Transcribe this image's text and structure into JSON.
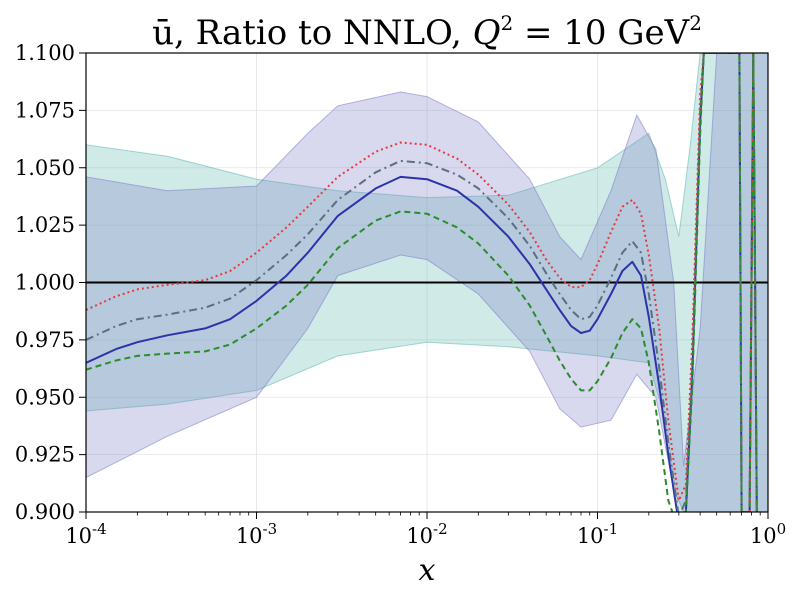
{
  "chart_data": {
    "type": "line",
    "title": "ū, Ratio to NNLO, Q² = 10 GeV²",
    "title_parts": {
      "main": "ū, Ratio to NNLO, ",
      "q": "Q",
      "q_sup": "2",
      "eq": " = 10 GeV",
      "unit_sup": "2"
    },
    "xlabel": "x",
    "ylabel": "",
    "xscale": "log",
    "xlim": [
      0.0001,
      1
    ],
    "ylim": [
      0.9,
      1.1
    ],
    "grid": true,
    "x_ticks": [
      {
        "value": 0.0001,
        "base": "10",
        "exp": "-4"
      },
      {
        "value": 0.001,
        "base": "10",
        "exp": "-3"
      },
      {
        "value": 0.01,
        "base": "10",
        "exp": "-2"
      },
      {
        "value": 0.1,
        "base": "10",
        "exp": "-1"
      },
      {
        "value": 1,
        "base": "10",
        "exp": "0"
      }
    ],
    "y_ticks": [
      0.9,
      0.925,
      0.95,
      0.975,
      1.0,
      1.025,
      1.05,
      1.075,
      1.1
    ],
    "y_tick_labels": [
      "0.900",
      "0.925",
      "0.950",
      "0.975",
      "1.000",
      "1.025",
      "1.050",
      "1.075",
      "1.100"
    ],
    "reference_line": {
      "y": 1.0,
      "color": "#000000"
    },
    "bands": [
      {
        "name": "band-teal",
        "color": "#5fb8b0",
        "x": [
          0.0001,
          0.0003,
          0.001,
          0.003,
          0.01,
          0.03,
          0.1,
          0.2,
          0.25,
          0.3,
          0.35,
          0.4,
          0.5,
          0.7,
          1
        ],
        "upper": [
          1.06,
          1.055,
          1.045,
          1.04,
          1.037,
          1.038,
          1.05,
          1.065,
          1.045,
          1.02,
          1.06,
          1.1,
          1.1,
          1.1,
          1.1
        ],
        "lower": [
          0.944,
          0.947,
          0.953,
          0.968,
          0.974,
          0.972,
          0.968,
          0.965,
          0.94,
          0.9,
          0.9,
          0.9,
          0.9,
          0.9,
          0.9
        ]
      },
      {
        "name": "band-blue",
        "color": "#7e7ec8",
        "x": [
          0.0001,
          0.0003,
          0.001,
          0.002,
          0.003,
          0.007,
          0.01,
          0.02,
          0.04,
          0.06,
          0.08,
          0.12,
          0.17,
          0.22,
          0.28,
          0.32,
          0.4,
          0.5,
          0.6,
          0.7,
          0.8,
          0.9,
          1
        ],
        "upper": [
          1.046,
          1.04,
          1.042,
          1.065,
          1.077,
          1.083,
          1.081,
          1.07,
          1.045,
          1.02,
          1.01,
          1.04,
          1.073,
          1.058,
          1.0,
          0.92,
          0.98,
          1.1,
          1.1,
          1.1,
          1.1,
          1.1,
          1.1
        ],
        "lower": [
          0.915,
          0.933,
          0.95,
          0.98,
          1.003,
          1.012,
          1.01,
          0.995,
          0.97,
          0.945,
          0.937,
          0.94,
          0.96,
          0.95,
          0.91,
          0.9,
          0.9,
          0.9,
          0.9,
          0.9,
          0.9,
          0.9,
          0.9
        ]
      }
    ],
    "series": [
      {
        "name": "solid-blue",
        "style": "solid",
        "color": "#2b33a8",
        "x": [
          0.0001,
          0.00015,
          0.0002,
          0.0003,
          0.0005,
          0.0007,
          0.001,
          0.0015,
          0.002,
          0.003,
          0.005,
          0.007,
          0.01,
          0.015,
          0.02,
          0.03,
          0.04,
          0.05,
          0.06,
          0.07,
          0.08,
          0.09,
          0.1,
          0.12,
          0.14,
          0.16,
          0.18,
          0.2,
          0.23,
          0.26,
          0.3,
          0.33,
          0.36,
          0.4,
          0.42,
          0.45,
          0.5,
          0.55,
          0.6,
          0.65,
          0.68,
          0.7,
          0.72,
          0.75,
          0.78,
          0.8,
          0.82,
          0.84,
          0.86,
          0.88
        ],
        "values": [
          0.965,
          0.971,
          0.974,
          0.977,
          0.98,
          0.984,
          0.992,
          1.003,
          1.013,
          1.029,
          1.041,
          1.046,
          1.045,
          1.04,
          1.033,
          1.02,
          1.008,
          0.997,
          0.988,
          0.981,
          0.978,
          0.979,
          0.984,
          0.995,
          1.005,
          1.009,
          1.003,
          0.985,
          0.955,
          0.925,
          0.895,
          0.9,
          0.96,
          1.07,
          1.1,
          1.1,
          1.1,
          1.1,
          1.1,
          1.1,
          1.1,
          0.9,
          0.9,
          0.9,
          0.9,
          1.0,
          1.1,
          1.0,
          0.9,
          0.9
        ]
      },
      {
        "name": "dashdot-gray",
        "style": "dashdot",
        "color": "#5b6f80",
        "x": [
          0.0001,
          0.00015,
          0.0002,
          0.0003,
          0.0005,
          0.0007,
          0.001,
          0.0015,
          0.002,
          0.003,
          0.005,
          0.007,
          0.01,
          0.015,
          0.02,
          0.03,
          0.04,
          0.05,
          0.06,
          0.07,
          0.08,
          0.09,
          0.1,
          0.12,
          0.14,
          0.16,
          0.18,
          0.2,
          0.23,
          0.26,
          0.3,
          0.33,
          0.36,
          0.4,
          0.42,
          0.45,
          0.5,
          0.55,
          0.6,
          0.65,
          0.68,
          0.7,
          0.72,
          0.75,
          0.78,
          0.8,
          0.82,
          0.84,
          0.86,
          0.88
        ],
        "values": [
          0.975,
          0.981,
          0.984,
          0.986,
          0.989,
          0.993,
          1.001,
          1.012,
          1.021,
          1.036,
          1.048,
          1.053,
          1.052,
          1.047,
          1.041,
          1.028,
          1.016,
          1.004,
          0.995,
          0.988,
          0.984,
          0.985,
          0.99,
          1.002,
          1.013,
          1.018,
          1.013,
          0.995,
          0.963,
          0.93,
          0.898,
          0.905,
          0.965,
          1.075,
          1.1,
          1.1,
          1.1,
          1.1,
          1.1,
          1.1,
          1.1,
          0.9,
          0.9,
          0.9,
          0.9,
          1.0,
          1.1,
          1.0,
          0.9,
          0.9
        ]
      },
      {
        "name": "dotted-red",
        "style": "dotted",
        "color": "#e8383d",
        "x": [
          0.0001,
          0.00015,
          0.0002,
          0.0003,
          0.0005,
          0.0007,
          0.001,
          0.0015,
          0.002,
          0.003,
          0.005,
          0.007,
          0.01,
          0.015,
          0.02,
          0.03,
          0.04,
          0.05,
          0.06,
          0.07,
          0.08,
          0.09,
          0.1,
          0.12,
          0.14,
          0.16,
          0.18,
          0.2,
          0.23,
          0.26,
          0.3,
          0.33,
          0.36,
          0.4,
          0.42,
          0.45,
          0.5,
          0.55,
          0.6,
          0.65,
          0.68,
          0.7,
          0.72,
          0.75,
          0.78,
          0.8,
          0.82,
          0.84,
          0.86,
          0.88
        ],
        "values": [
          0.988,
          0.994,
          0.997,
          0.999,
          1.001,
          1.005,
          1.013,
          1.024,
          1.033,
          1.046,
          1.057,
          1.061,
          1.06,
          1.054,
          1.047,
          1.034,
          1.022,
          1.01,
          1.002,
          0.998,
          0.998,
          1.001,
          1.008,
          1.022,
          1.033,
          1.036,
          1.03,
          1.012,
          0.98,
          0.94,
          0.905,
          0.912,
          0.975,
          1.082,
          1.1,
          1.1,
          1.1,
          1.1,
          1.1,
          1.1,
          1.1,
          0.9,
          0.9,
          0.9,
          0.9,
          1.0,
          1.1,
          1.0,
          0.9,
          0.9
        ]
      },
      {
        "name": "dashed-green",
        "style": "dashed",
        "color": "#2b8c2b",
        "x": [
          0.0001,
          0.00015,
          0.0002,
          0.0003,
          0.0005,
          0.0007,
          0.001,
          0.0015,
          0.002,
          0.003,
          0.005,
          0.007,
          0.01,
          0.015,
          0.02,
          0.03,
          0.04,
          0.05,
          0.06,
          0.07,
          0.08,
          0.09,
          0.1,
          0.12,
          0.14,
          0.16,
          0.18,
          0.2,
          0.23,
          0.26,
          0.3,
          0.33,
          0.36,
          0.4,
          0.42,
          0.45,
          0.5,
          0.55,
          0.6,
          0.65,
          0.68,
          0.7,
          0.72,
          0.75,
          0.78,
          0.8,
          0.82,
          0.84,
          0.86,
          0.88
        ],
        "values": [
          0.962,
          0.966,
          0.968,
          0.969,
          0.97,
          0.973,
          0.98,
          0.99,
          0.999,
          1.015,
          1.027,
          1.031,
          1.03,
          1.024,
          1.017,
          1.003,
          0.99,
          0.977,
          0.966,
          0.958,
          0.953,
          0.953,
          0.957,
          0.967,
          0.978,
          0.984,
          0.98,
          0.965,
          0.935,
          0.905,
          0.892,
          0.9,
          0.955,
          1.065,
          1.1,
          1.1,
          1.1,
          1.1,
          1.1,
          1.1,
          1.1,
          0.9,
          0.9,
          0.9,
          0.9,
          1.0,
          1.1,
          1.0,
          0.9,
          0.9
        ]
      }
    ]
  }
}
